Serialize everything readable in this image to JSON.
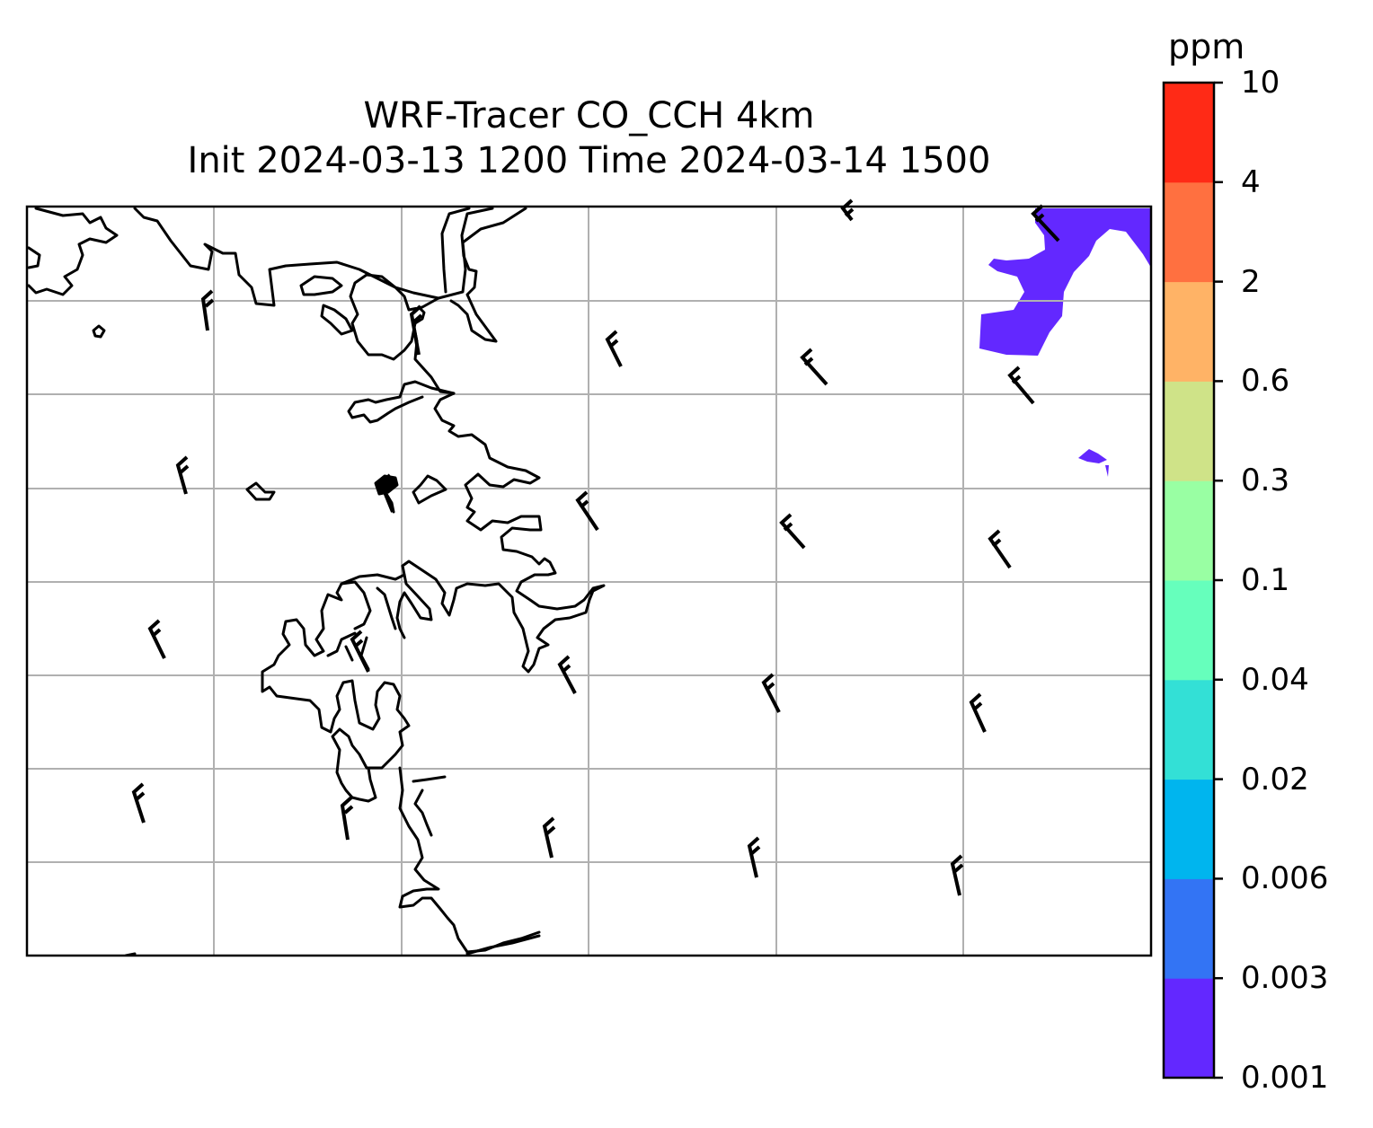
{
  "title": {
    "line1": "WRF-Tracer CO_CCH 4km",
    "line2": "Init 2024-03-13 1200 Time 2024-03-14 1500"
  },
  "colorbar": {
    "units": "ppm",
    "ticks": [
      "0.001",
      "0.003",
      "0.006",
      "0.02",
      "0.04",
      "0.1",
      "0.3",
      "0.6",
      "2",
      "4",
      "10"
    ],
    "colors": [
      "#6328ff",
      "#3374f4",
      "#00b5ee",
      "#33e0d6",
      "#66ffbc",
      "#99ffa3",
      "#cfe388",
      "#ffb366",
      "#ff7040",
      "#ff2a16"
    ]
  },
  "map": {
    "gridline_color": "#b0b0b0",
    "tracer_fill_color": "#6328ff",
    "coastline_color": "#000000",
    "wind_barb_count": 22
  }
}
